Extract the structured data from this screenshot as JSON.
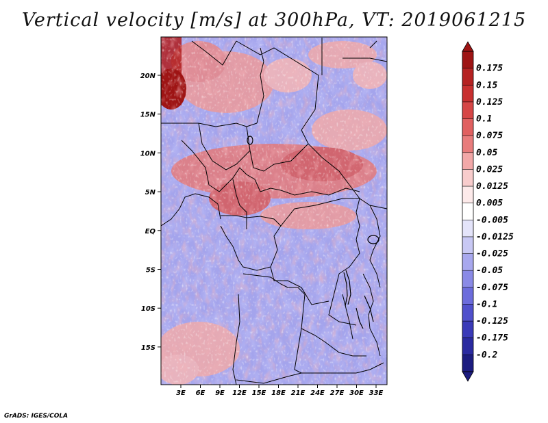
{
  "title": "Vertical velocity [m/s] at 300hPa, VT: 2019061215",
  "footer": "GrADS: IGES/COLA",
  "lat_labels": [
    "20N",
    "15N",
    "10N",
    "5N",
    "EQ",
    "5S",
    "10S",
    "15S"
  ],
  "lon_labels": [
    "3E",
    "6E",
    "9E",
    "12E",
    "15E",
    "18E",
    "21E",
    "24E",
    "27E",
    "30E",
    "33E"
  ],
  "colorbar": {
    "labels": [
      "0.175",
      "0.15",
      "0.125",
      "0.1",
      "0.075",
      "0.05",
      "0.025",
      "0.0125",
      "0.005",
      "-0.005",
      "-0.0125",
      "-0.025",
      "-0.05",
      "-0.075",
      "-0.1",
      "-0.125",
      "-0.175",
      "-0.2"
    ],
    "colors": [
      "#9e1414",
      "#b52222",
      "#c83030",
      "#d64646",
      "#e06060",
      "#e87c7c",
      "#f2a8a8",
      "#f8cccc",
      "#fdeaea",
      "#ffffff",
      "#e4e4fa",
      "#c8c8f4",
      "#a8a8ee",
      "#8a8ae6",
      "#6c6cdc",
      "#5050cc",
      "#3a3ab8",
      "#2a2aa0",
      "#1c1c80"
    ]
  },
  "legend_colors": {
    "positive": "#c83030",
    "negative": "#5050cc",
    "neutral": "#ffffff"
  }
}
